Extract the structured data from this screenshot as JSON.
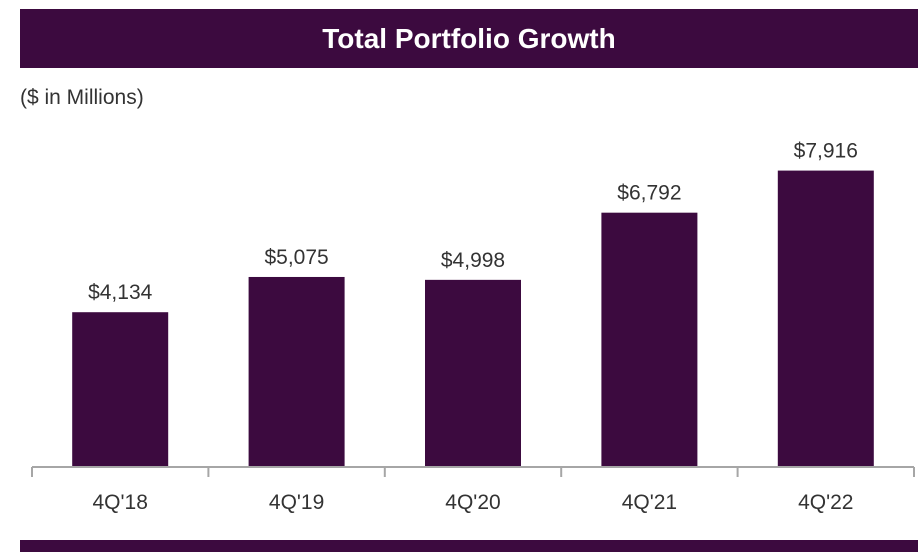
{
  "header": {
    "title": "Total Portfolio Growth"
  },
  "unit_label": "($ in Millions)",
  "colors": {
    "bar": "#3c0a3f",
    "header": "#3c0a3f",
    "axis": "#a6a6a6"
  },
  "chart_data": {
    "type": "bar",
    "categories": [
      "4Q'18",
      "4Q'19",
      "4Q'20",
      "4Q'21",
      "4Q'22"
    ],
    "values": [
      4134,
      5075,
      4998,
      6792,
      7916
    ],
    "value_labels": [
      "$4,134",
      "$5,075",
      "$4,998",
      "$6,792",
      "$7,916"
    ],
    "ylim": [
      0,
      9000
    ],
    "grid": false,
    "legend": "none"
  }
}
